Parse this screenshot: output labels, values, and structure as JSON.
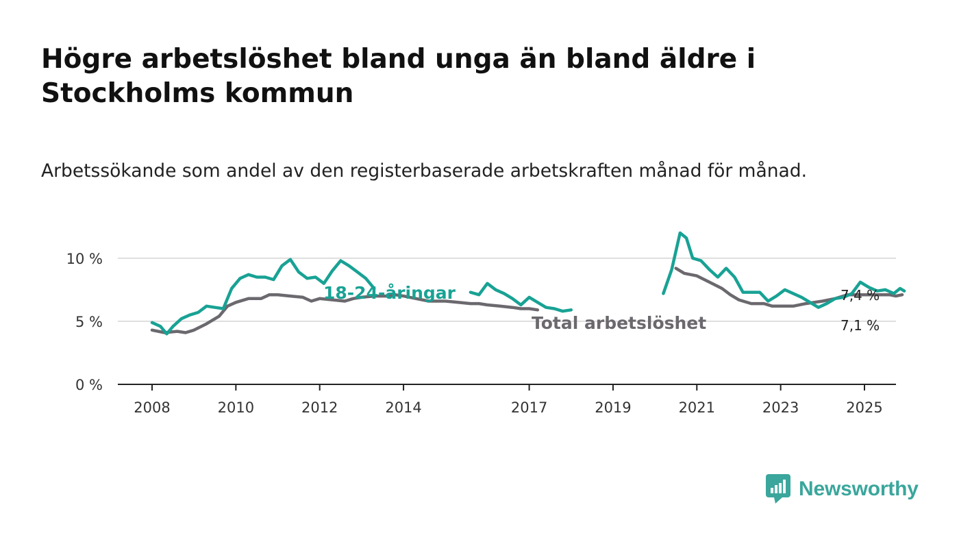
{
  "page": {
    "title": "Högre arbetslöshet bland unga än bland äldre i Stockholms kommun",
    "subtitle": "Arbetssökande som andel av den registerbaserade arbetskraften månad för månad.",
    "brand": "Newsworthy"
  },
  "colors": {
    "youth": "#18a294",
    "total": "#6b686e",
    "grid": "#dedede",
    "axis": "#222222",
    "brand": "#3aa69c"
  },
  "chart_data": {
    "type": "line",
    "title": "Högre arbetslöshet bland unga än bland äldre i Stockholms kommun",
    "subtitle": "Arbetssökande som andel av den registerbaserade arbetskraften månad för månad.",
    "xlabel": "",
    "ylabel": "",
    "xlim": [
      2007.95,
      2025.95
    ],
    "ylim": [
      0,
      12
    ],
    "x_ticks": [
      2008,
      2010,
      2012,
      2014,
      2017,
      2019,
      2021,
      2023,
      2025
    ],
    "x_tick_labels": [
      "2008",
      "2010",
      "2012",
      "2014",
      "2017",
      "2019",
      "2021",
      "2023",
      "2025"
    ],
    "y_ticks": [
      0,
      5,
      10
    ],
    "y_tick_labels": [
      "0 %",
      "5 %",
      "10 %"
    ],
    "grid": true,
    "series": [
      {
        "name": "Total arbetslöshet",
        "label": "Total arbetslöshet",
        "end_label": "7,1 %",
        "points": [
          [
            2008.0,
            4.3
          ],
          [
            2008.3,
            4.1
          ],
          [
            2008.6,
            4.2
          ],
          [
            2008.8,
            4.1
          ],
          [
            2009.0,
            4.3
          ],
          [
            2009.3,
            4.8
          ],
          [
            2009.6,
            5.4
          ],
          [
            2009.8,
            6.2
          ],
          [
            2010.0,
            6.5
          ],
          [
            2010.3,
            6.8
          ],
          [
            2010.6,
            6.8
          ],
          [
            2010.8,
            7.1
          ],
          [
            2011.0,
            7.1
          ],
          [
            2011.3,
            7.0
          ],
          [
            2011.6,
            6.9
          ],
          [
            2011.8,
            6.6
          ],
          [
            2012.0,
            6.8
          ],
          [
            2012.3,
            6.7
          ],
          [
            2012.6,
            6.6
          ],
          [
            2012.8,
            6.8
          ],
          [
            2013.0,
            6.9
          ],
          [
            2013.3,
            7.0
          ],
          [
            2013.6,
            7.0
          ],
          [
            2013.8,
            7.1
          ],
          [
            2014.0,
            7.0
          ],
          [
            2014.3,
            6.8
          ],
          [
            2014.6,
            6.6
          ],
          [
            2014.8,
            6.6
          ],
          [
            2015.0,
            6.6
          ],
          [
            2015.3,
            6.5
          ],
          [
            2015.6,
            6.4
          ],
          [
            2015.8,
            6.4
          ],
          [
            2016.0,
            6.3
          ],
          [
            2016.3,
            6.2
          ],
          [
            2016.6,
            6.1
          ],
          [
            2016.8,
            6.0
          ],
          [
            2017.0,
            6.0
          ],
          [
            2017.2,
            5.9
          ],
          [
            2020.5,
            9.2
          ],
          [
            2020.7,
            8.8
          ],
          [
            2021.0,
            8.6
          ],
          [
            2021.3,
            8.1
          ],
          [
            2021.6,
            7.6
          ],
          [
            2021.8,
            7.1
          ],
          [
            2022.0,
            6.7
          ],
          [
            2022.3,
            6.4
          ],
          [
            2022.6,
            6.4
          ],
          [
            2022.8,
            6.2
          ],
          [
            2023.0,
            6.2
          ],
          [
            2023.3,
            6.2
          ],
          [
            2023.6,
            6.4
          ],
          [
            2023.8,
            6.5
          ],
          [
            2024.0,
            6.6
          ],
          [
            2024.3,
            6.8
          ],
          [
            2024.6,
            7.1
          ],
          [
            2024.8,
            7.1
          ],
          [
            2025.0,
            7.1
          ],
          [
            2025.3,
            7.1
          ],
          [
            2025.6,
            7.1
          ],
          [
            2025.75,
            7.0
          ],
          [
            2025.9,
            7.1
          ]
        ]
      },
      {
        "name": "18-24-åringar",
        "label": "18-24-åringar",
        "end_label": "7,4 %",
        "points": [
          [
            2008.0,
            4.9
          ],
          [
            2008.2,
            4.6
          ],
          [
            2008.35,
            4.0
          ],
          [
            2008.5,
            4.6
          ],
          [
            2008.7,
            5.2
          ],
          [
            2008.9,
            5.5
          ],
          [
            2009.1,
            5.7
          ],
          [
            2009.3,
            6.2
          ],
          [
            2009.5,
            6.1
          ],
          [
            2009.7,
            6.0
          ],
          [
            2009.9,
            7.6
          ],
          [
            2010.1,
            8.4
          ],
          [
            2010.3,
            8.7
          ],
          [
            2010.5,
            8.5
          ],
          [
            2010.7,
            8.5
          ],
          [
            2010.9,
            8.3
          ],
          [
            2011.1,
            9.4
          ],
          [
            2011.3,
            9.9
          ],
          [
            2011.5,
            8.9
          ],
          [
            2011.7,
            8.4
          ],
          [
            2011.9,
            8.5
          ],
          [
            2012.1,
            8.0
          ],
          [
            2012.3,
            9.0
          ],
          [
            2012.5,
            9.8
          ],
          [
            2012.7,
            9.4
          ],
          [
            2012.9,
            8.9
          ],
          [
            2013.1,
            8.4
          ],
          [
            2013.3,
            7.6
          ],
          [
            2015.6,
            7.3
          ],
          [
            2015.8,
            7.1
          ],
          [
            2016.0,
            8.0
          ],
          [
            2016.2,
            7.5
          ],
          [
            2016.4,
            7.2
          ],
          [
            2016.6,
            6.8
          ],
          [
            2016.8,
            6.3
          ],
          [
            2017.0,
            6.9
          ],
          [
            2017.2,
            6.5
          ],
          [
            2017.4,
            6.1
          ],
          [
            2017.6,
            6.0
          ],
          [
            2017.8,
            5.8
          ],
          [
            2018.0,
            5.9
          ],
          [
            2020.2,
            7.2
          ],
          [
            2020.4,
            9.1
          ],
          [
            2020.6,
            12.0
          ],
          [
            2020.75,
            11.6
          ],
          [
            2020.9,
            10.0
          ],
          [
            2021.1,
            9.8
          ],
          [
            2021.3,
            9.1
          ],
          [
            2021.5,
            8.5
          ],
          [
            2021.7,
            9.2
          ],
          [
            2021.9,
            8.5
          ],
          [
            2022.1,
            7.3
          ],
          [
            2022.5,
            7.3
          ],
          [
            2022.7,
            6.6
          ],
          [
            2022.9,
            7.0
          ],
          [
            2023.1,
            7.5
          ],
          [
            2023.3,
            7.2
          ],
          [
            2023.5,
            6.9
          ],
          [
            2023.7,
            6.5
          ],
          [
            2023.9,
            6.1
          ],
          [
            2024.1,
            6.4
          ],
          [
            2024.3,
            6.8
          ],
          [
            2024.5,
            6.9
          ],
          [
            2024.7,
            7.2
          ],
          [
            2024.9,
            8.1
          ],
          [
            2025.1,
            7.7
          ],
          [
            2025.3,
            7.4
          ],
          [
            2025.5,
            7.5
          ],
          [
            2025.7,
            7.2
          ],
          [
            2025.85,
            7.6
          ],
          [
            2025.95,
            7.4
          ]
        ]
      }
    ]
  }
}
